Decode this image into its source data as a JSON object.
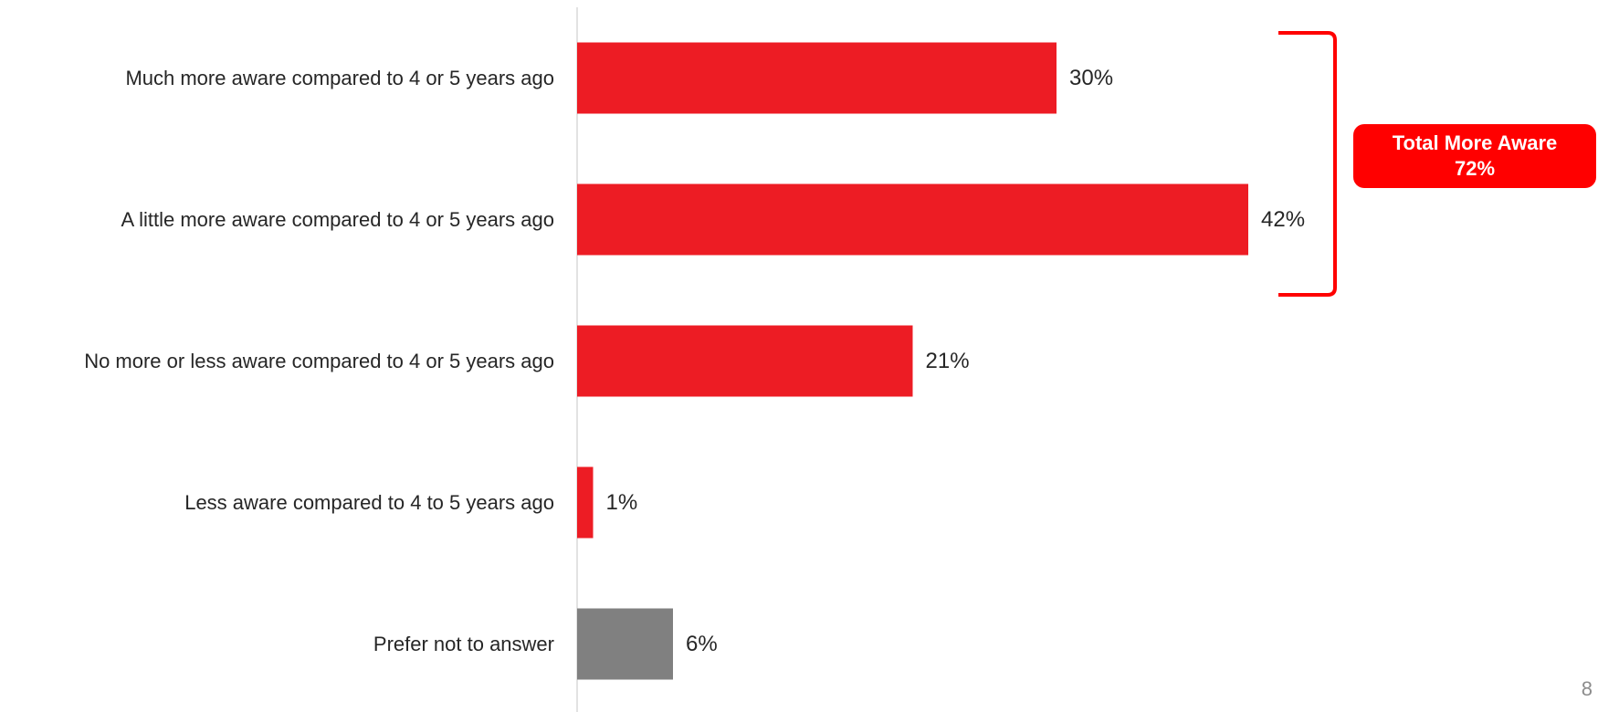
{
  "chart_data": {
    "type": "bar",
    "orientation": "horizontal",
    "categories": [
      "Much more aware compared to 4 or 5 years ago",
      "A little more aware compared to 4 or 5 years ago",
      "No more or less aware compared to 4 or 5 years ago",
      "Less aware compared to 4 to 5 years ago",
      "Prefer not to answer"
    ],
    "values": [
      30,
      42,
      21,
      1,
      6
    ],
    "value_labels": [
      "30%",
      "42%",
      "21%",
      "1%",
      "6%"
    ],
    "bar_colors": [
      "#ed1c24",
      "#ed1c24",
      "#ed1c24",
      "#ed1c24",
      "#808080"
    ],
    "xlim": [
      0,
      42
    ],
    "grid": false,
    "title": "",
    "xlabel": "",
    "ylabel": "",
    "annotation": {
      "bracket_covers": [
        0,
        1
      ],
      "label_line1": "Total More Aware",
      "label_line2": "72%",
      "color": "#ff0000"
    }
  },
  "page_number": "8",
  "colors": {
    "accent_red": "#ed1c24",
    "neutral_gray": "#808080",
    "callout_red": "#ff0000",
    "axis": "#d9d9d9"
  }
}
